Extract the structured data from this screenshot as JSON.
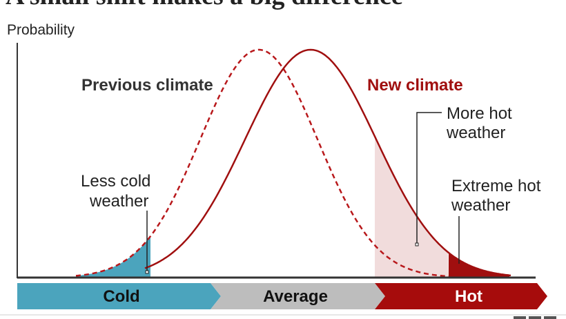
{
  "title": "A small shift makes a big difference",
  "y_axis_label": "Probability",
  "curves": {
    "previous": {
      "label": "Previous climate",
      "color": "#b8181b",
      "style": "dashed"
    },
    "new": {
      "label": "New climate",
      "color": "#a00f0f",
      "style": "solid"
    }
  },
  "annotations": {
    "less_cold": [
      "Less cold",
      "weather"
    ],
    "more_hot": [
      "More hot",
      "weather"
    ],
    "extreme_hot": [
      "Extreme hot",
      "weather"
    ]
  },
  "bands": [
    {
      "label": "Cold",
      "color": "#4ba4bd",
      "text_color": "#111111"
    },
    {
      "label": "Average",
      "color": "#bdbdbd",
      "text_color": "#111111"
    },
    {
      "label": "Hot",
      "color": "#a60c0c",
      "text_color": "#ffffff"
    }
  ],
  "colors": {
    "cold_fill": "#4ba4bd",
    "hot_fill": "#f1dcdc",
    "extreme_fill": "#a00f0f",
    "axis": "#333333"
  }
}
